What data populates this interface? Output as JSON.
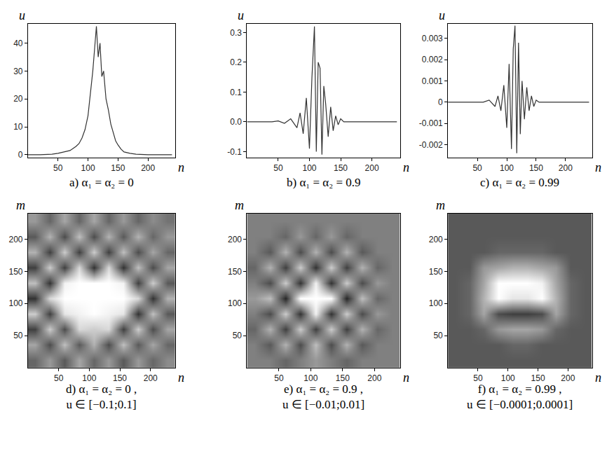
{
  "chart_data": [
    {
      "type": "line",
      "title": "a) α₁ = α₂ = 0",
      "x_label": "n",
      "y_label": "u",
      "color": "#333333",
      "x": [
        0,
        20,
        40,
        50,
        60,
        70,
        80,
        85,
        90,
        95,
        100,
        104,
        108,
        111,
        114,
        117,
        120,
        123,
        126,
        130,
        134,
        138,
        142,
        146,
        150,
        155,
        160,
        170,
        180,
        200,
        220,
        240
      ],
      "values": [
        0,
        0,
        0.2,
        0.5,
        1,
        1.5,
        3,
        4,
        6,
        9,
        14,
        22,
        30,
        38,
        46,
        35,
        40,
        28,
        30,
        20,
        16,
        11,
        8,
        5,
        3.5,
        2,
        1,
        0.5,
        0.2,
        0,
        0,
        0
      ],
      "xlim": [
        0,
        245
      ],
      "xticks": [
        50,
        100,
        150,
        200
      ],
      "ylim": [
        -1,
        47
      ],
      "yticks": [
        0,
        10,
        20,
        30,
        40
      ]
    },
    {
      "type": "line",
      "title": "b) α₁ = α₂ = 0.9",
      "x_label": "n",
      "y_label": "u",
      "color": "#333333",
      "x": [
        0,
        20,
        40,
        50,
        60,
        70,
        80,
        85,
        90,
        95,
        100,
        104,
        108,
        111,
        114,
        117,
        120,
        123,
        126,
        130,
        134,
        138,
        142,
        146,
        150,
        155,
        160,
        170,
        180,
        200,
        220,
        240
      ],
      "values": [
        0,
        0,
        0,
        0.003,
        -0.005,
        0.01,
        -0.02,
        0.03,
        -0.04,
        0.08,
        -0.09,
        0.15,
        0.32,
        -0.1,
        0.2,
        0.18,
        -0.11,
        0.12,
        0.06,
        -0.05,
        0.05,
        -0.03,
        0.02,
        -0.01,
        0.01,
        0,
        0,
        0,
        0,
        0,
        0,
        0
      ],
      "xlim": [
        0,
        245
      ],
      "xticks": [
        50,
        100,
        150,
        200
      ],
      "ylim": [
        -0.12,
        0.33
      ],
      "yticks": [
        -0.1,
        {
          "value": 0,
          "label": "0.0"
        },
        0.1,
        0.2,
        0.3
      ]
    },
    {
      "type": "line",
      "title": "c) α₁ = α₂ = 0.99",
      "x_label": "n",
      "y_label": "u",
      "color": "#333333",
      "x": [
        0,
        20,
        40,
        50,
        60,
        70,
        80,
        85,
        90,
        95,
        100,
        104,
        108,
        111,
        114,
        117,
        120,
        123,
        126,
        130,
        134,
        138,
        142,
        146,
        150,
        155,
        160,
        170,
        180,
        200,
        220,
        240
      ],
      "values": [
        0,
        0,
        0,
        0,
        0,
        0.0001,
        -0.0002,
        0.0003,
        -0.0004,
        0.0008,
        -0.0012,
        0.0018,
        -0.0022,
        0.0025,
        0.0036,
        -0.0024,
        0.0028,
        -0.0015,
        0.001,
        -0.0008,
        0.0007,
        -0.0004,
        0.0003,
        -0.0002,
        0.0001,
        0,
        0,
        0,
        0,
        0,
        0,
        0
      ],
      "xlim": [
        0,
        245
      ],
      "xticks": [
        50,
        100,
        150,
        200
      ],
      "ylim": [
        -0.0026,
        0.0037
      ],
      "yticks": [
        -0.002,
        -0.001,
        0,
        0.001,
        0.002,
        0.003
      ]
    },
    {
      "type": "heatmap",
      "title": "d) α₁ = α₂ = 0 ,",
      "subtitle": "u ∈ [−0.1;0.1]",
      "x_label": "n",
      "y_label": "m",
      "x": [
        12,
        36,
        60,
        84,
        108,
        132,
        156,
        180,
        204,
        228
      ],
      "y": [
        12,
        36,
        60,
        84,
        108,
        132,
        156,
        180,
        204,
        228
      ],
      "z": [
        [
          -0.02,
          0.02,
          -0.03,
          0.03,
          -0.02,
          0.02,
          -0.03,
          0.02,
          -0.02,
          0.01
        ],
        [
          0.03,
          -0.04,
          0.05,
          -0.03,
          0.04,
          -0.04,
          0.05,
          -0.03,
          0.03,
          -0.02
        ],
        [
          -0.05,
          0.06,
          -0.04,
          0.07,
          0.06,
          0.07,
          -0.05,
          0.06,
          -0.04,
          0.03
        ],
        [
          0.06,
          -0.05,
          0.08,
          0.09,
          0.1,
          0.09,
          0.08,
          -0.06,
          0.05,
          -0.03
        ],
        [
          -0.06,
          0.07,
          0.1,
          0.1,
          0.1,
          0.1,
          0.1,
          0.07,
          -0.06,
          0.04
        ],
        [
          0.05,
          -0.06,
          0.09,
          0.1,
          0.1,
          0.1,
          0.09,
          -0.05,
          0.06,
          -0.03
        ],
        [
          -0.05,
          0.06,
          -0.05,
          0.07,
          -0.06,
          0.07,
          -0.06,
          0.05,
          -0.04,
          0.03
        ],
        [
          0.04,
          -0.05,
          0.06,
          -0.05,
          0.06,
          -0.05,
          0.05,
          -0.04,
          0.03,
          -0.02
        ],
        [
          -0.03,
          0.04,
          -0.04,
          0.05,
          -0.04,
          0.04,
          -0.03,
          0.04,
          -0.02,
          0.02
        ],
        [
          0.02,
          -0.02,
          0.03,
          -0.02,
          0.03,
          -0.02,
          0.02,
          -0.02,
          0.01,
          -0.01
        ]
      ],
      "zlim": [
        -0.1,
        0.1
      ],
      "xlim": [
        0,
        240
      ],
      "xticks": [
        50,
        100,
        150,
        200
      ],
      "ylim": [
        0,
        240
      ],
      "yticks": [
        50,
        100,
        150,
        200
      ]
    },
    {
      "type": "heatmap",
      "title": "e) α₁ = α₂ = 0.9 ,",
      "subtitle": "u ∈ [−0.01;0.01]",
      "x_label": "n",
      "y_label": "m",
      "x": [
        12,
        36,
        60,
        84,
        108,
        132,
        156,
        180,
        204,
        228
      ],
      "y": [
        12,
        36,
        60,
        84,
        108,
        132,
        156,
        180,
        204,
        228
      ],
      "z": [
        [
          0,
          0,
          -0.002,
          0,
          0.002,
          0,
          -0.002,
          0,
          0,
          0
        ],
        [
          0,
          -0.003,
          0.004,
          -0.004,
          0.005,
          -0.004,
          0.004,
          -0.003,
          0,
          0
        ],
        [
          -0.002,
          0.004,
          -0.005,
          0.006,
          -0.005,
          0.006,
          -0.005,
          0.004,
          -0.002,
          0
        ],
        [
          0,
          -0.004,
          0.006,
          -0.006,
          0.009,
          -0.006,
          0.006,
          -0.004,
          0.002,
          0
        ],
        [
          0.002,
          0.005,
          -0.007,
          0.01,
          0.01,
          0.01,
          -0.007,
          0.005,
          -0.002,
          0
        ],
        [
          0,
          -0.004,
          0.006,
          -0.006,
          0.009,
          -0.006,
          0.006,
          -0.004,
          0.002,
          0
        ],
        [
          -0.002,
          0.004,
          -0.005,
          0.006,
          -0.006,
          0.006,
          -0.005,
          0.004,
          -0.002,
          0
        ],
        [
          0,
          -0.003,
          0.004,
          -0.004,
          0.004,
          -0.004,
          0.004,
          -0.003,
          0,
          0
        ],
        [
          0,
          0,
          -0.002,
          0.002,
          -0.002,
          0.002,
          -0.002,
          0,
          0,
          0
        ],
        [
          0,
          0,
          0,
          0,
          0,
          0,
          0,
          0,
          0,
          0
        ]
      ],
      "zlim": [
        -0.01,
        0.01
      ],
      "xlim": [
        0,
        240
      ],
      "xticks": [
        50,
        100,
        150,
        200
      ],
      "ylim": [
        0,
        240
      ],
      "yticks": [
        50,
        100,
        150,
        200
      ]
    },
    {
      "type": "heatmap",
      "title": "f) α₁ = α₂ = 0.99 ,",
      "subtitle": "u ∈ [−0.0001;0.0001]",
      "x_label": "n",
      "y_label": "m",
      "x": [
        12,
        36,
        60,
        84,
        108,
        132,
        156,
        180,
        204,
        228
      ],
      "y": [
        12,
        36,
        60,
        84,
        108,
        132,
        156,
        180,
        204,
        228
      ],
      "z": [
        [
          -3e-05,
          -3e-05,
          -3e-05,
          -3e-05,
          -3e-05,
          -3e-05,
          -3e-05,
          -3e-05,
          -3e-05,
          -3e-05
        ],
        [
          -3e-05,
          -3e-05,
          -3e-05,
          -3e-05,
          -2e-05,
          -2e-05,
          -3e-05,
          -3e-05,
          -3e-05,
          -3e-05
        ],
        [
          -3e-05,
          -3e-05,
          -2e-05,
          2e-05,
          3e-05,
          3e-05,
          2e-05,
          -2e-05,
          -3e-05,
          -3e-05
        ],
        [
          -3e-05,
          -2e-05,
          3e-05,
          -4e-05,
          -5e-05,
          -5e-05,
          -4e-05,
          3e-05,
          -2e-05,
          -3e-05
        ],
        [
          -3e-05,
          -2e-05,
          4e-05,
          0.0001,
          8e-05,
          8e-05,
          0.0001,
          4e-05,
          -2e-05,
          -3e-05
        ],
        [
          -3e-05,
          -2e-05,
          3e-05,
          0.0001,
          0.0001,
          0.0001,
          9e-05,
          3e-05,
          -2e-05,
          -3e-05
        ],
        [
          -3e-05,
          -3e-05,
          2e-05,
          3e-05,
          4e-05,
          4e-05,
          3e-05,
          2e-05,
          -3e-05,
          -3e-05
        ],
        [
          -3e-05,
          -3e-05,
          -3e-05,
          -2e-05,
          -2e-05,
          -2e-05,
          -2e-05,
          -3e-05,
          -3e-05,
          -3e-05
        ],
        [
          -3e-05,
          -3e-05,
          -3e-05,
          -3e-05,
          -3e-05,
          -3e-05,
          -3e-05,
          -3e-05,
          -3e-05,
          -3e-05
        ],
        [
          -3e-05,
          -3e-05,
          -3e-05,
          -3e-05,
          -3e-05,
          -3e-05,
          -3e-05,
          -3e-05,
          -3e-05,
          -3e-05
        ]
      ],
      "zlim": [
        -0.0001,
        0.0001
      ],
      "xlim": [
        0,
        240
      ],
      "xticks": [
        50,
        100,
        150,
        200
      ],
      "ylim": [
        0,
        240
      ],
      "yticks": [
        50,
        100,
        150,
        200
      ]
    }
  ]
}
